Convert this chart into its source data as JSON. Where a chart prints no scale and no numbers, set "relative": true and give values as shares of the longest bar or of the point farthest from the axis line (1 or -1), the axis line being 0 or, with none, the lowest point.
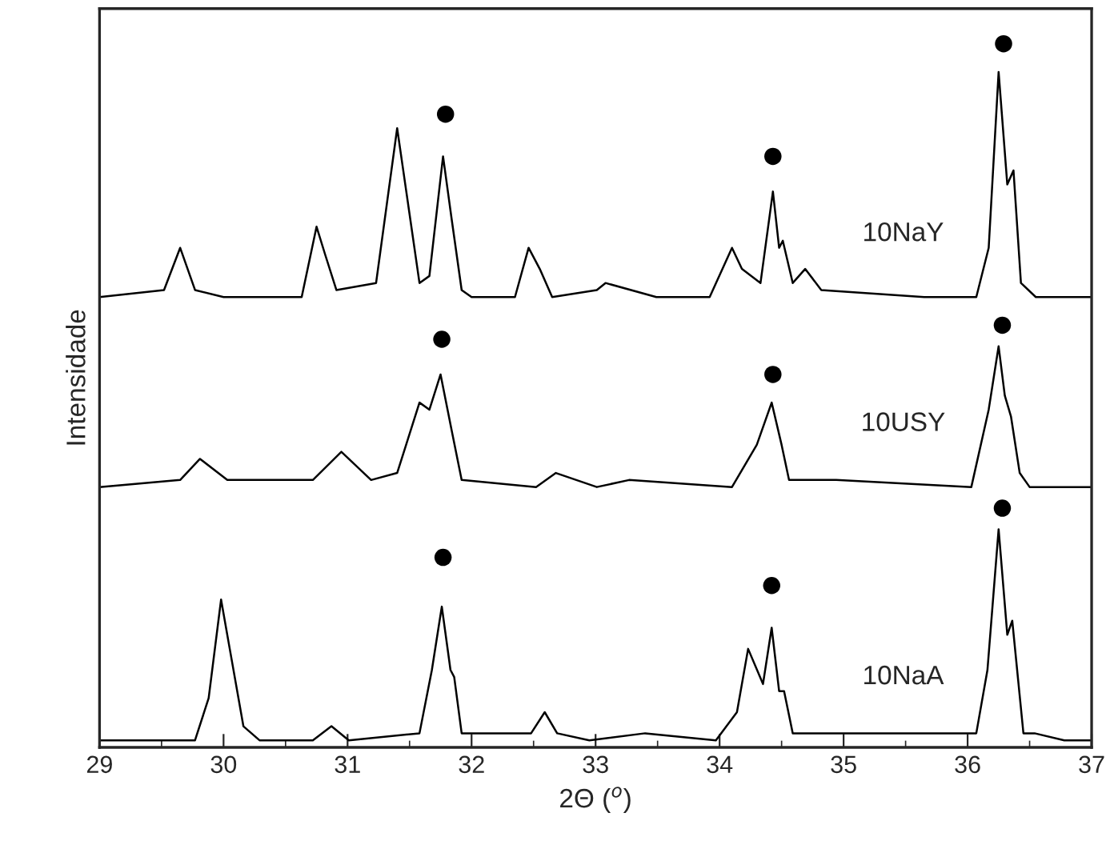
{
  "chart_data": {
    "type": "line",
    "relative": true,
    "xlabel": "2Θ ($^{o}$)",
    "ylabel": "Intensidade",
    "xlim": [
      29,
      37
    ],
    "xticks": [
      29,
      30,
      31,
      32,
      33,
      34,
      35,
      36,
      37
    ],
    "grid": false,
    "legend": false,
    "marker": "none",
    "line_style": "solid",
    "series": [
      {
        "name": "10NaY",
        "color": "#000000",
        "x": [
          29.0,
          29.52,
          29.65,
          29.77,
          30.0,
          30.63,
          30.75,
          30.82,
          30.91,
          31.23,
          31.4,
          31.49,
          31.58,
          31.66,
          31.77,
          31.84,
          31.92,
          32.0,
          32.35,
          32.46,
          32.55,
          32.65,
          33.01,
          33.08,
          33.49,
          33.92,
          34.1,
          34.18,
          34.33,
          34.43,
          34.48,
          34.51,
          34.59,
          34.69,
          34.82,
          35.65,
          36.07,
          36.17,
          36.25,
          36.32,
          36.37,
          36.43,
          36.55,
          37.0
        ],
        "values": [
          0.64,
          0.65,
          0.71,
          0.65,
          0.64,
          0.64,
          0.74,
          0.7,
          0.65,
          0.66,
          0.88,
          0.77,
          0.66,
          0.67,
          0.84,
          0.75,
          0.65,
          0.64,
          0.64,
          0.71,
          0.68,
          0.64,
          0.65,
          0.66,
          0.64,
          0.64,
          0.71,
          0.68,
          0.66,
          0.79,
          0.71,
          0.72,
          0.66,
          0.68,
          0.65,
          0.64,
          0.64,
          0.71,
          0.96,
          0.8,
          0.82,
          0.66,
          0.64,
          0.64
        ]
      },
      {
        "name": "10USY",
        "color": "#000000",
        "x": [
          29.0,
          29.65,
          29.81,
          30.03,
          30.72,
          30.95,
          31.19,
          31.4,
          31.58,
          31.66,
          31.75,
          31.84,
          31.92,
          32.52,
          32.68,
          33.01,
          33.27,
          34.1,
          34.3,
          34.42,
          34.5,
          34.56,
          34.94,
          36.03,
          36.17,
          36.25,
          36.3,
          36.35,
          36.42,
          36.5,
          37.0
        ],
        "values": [
          0.37,
          0.38,
          0.41,
          0.38,
          0.38,
          0.42,
          0.38,
          0.39,
          0.49,
          0.48,
          0.53,
          0.45,
          0.38,
          0.37,
          0.39,
          0.37,
          0.38,
          0.37,
          0.43,
          0.49,
          0.43,
          0.38,
          0.38,
          0.37,
          0.48,
          0.57,
          0.5,
          0.47,
          0.39,
          0.37,
          0.37
        ]
      },
      {
        "name": "10NaA",
        "color": "#000000",
        "x": [
          29.0,
          29.77,
          29.88,
          29.98,
          30.05,
          30.16,
          30.29,
          30.72,
          30.87,
          31.01,
          31.58,
          31.68,
          31.76,
          31.83,
          31.86,
          31.92,
          32.48,
          32.59,
          32.69,
          32.95,
          33.4,
          33.97,
          34.14,
          34.23,
          34.35,
          34.42,
          34.48,
          34.52,
          34.59,
          35.81,
          36.07,
          36.16,
          36.25,
          36.32,
          36.36,
          36.45,
          36.54,
          36.78,
          37.0
        ],
        "values": [
          0.01,
          0.01,
          0.07,
          0.21,
          0.14,
          0.03,
          0.01,
          0.01,
          0.03,
          0.01,
          0.02,
          0.11,
          0.2,
          0.11,
          0.1,
          0.02,
          0.02,
          0.05,
          0.02,
          0.01,
          0.02,
          0.01,
          0.05,
          0.14,
          0.09,
          0.17,
          0.08,
          0.08,
          0.02,
          0.02,
          0.02,
          0.11,
          0.31,
          0.16,
          0.18,
          0.02,
          0.02,
          0.01,
          0.01
        ]
      },
      {
        "type": "scatter",
        "color": "#000000",
        "marker": "circle",
        "x": [
          31.79,
          34.43,
          36.29,
          31.76,
          34.43,
          36.28,
          31.77,
          34.42,
          36.28
        ],
        "values": [
          0.9,
          0.84,
          1.0,
          0.58,
          0.53,
          0.6,
          0.27,
          0.23,
          0.34
        ]
      }
    ]
  }
}
